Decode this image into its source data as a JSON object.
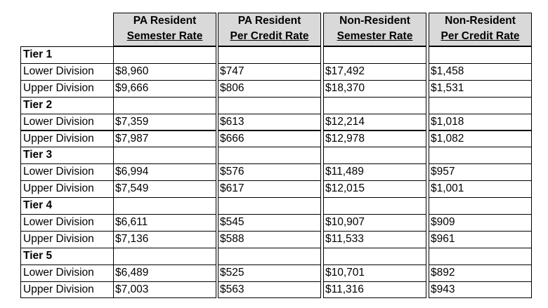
{
  "table": {
    "columns": [
      {
        "line1": "PA Resident",
        "line2": "Semester Rate"
      },
      {
        "line1": "PA Resident",
        "line2": "Per Credit Rate"
      },
      {
        "line1": "Non-Resident",
        "line2": "Semester Rate"
      },
      {
        "line1": "Non-Resident",
        "line2": "Per Credit Rate"
      }
    ],
    "rows": [
      {
        "type": "tier",
        "label": "Tier 1"
      },
      {
        "type": "data",
        "label": "Lower Division",
        "values": [
          "$8,960",
          "$747",
          "$17,492",
          "$1,458"
        ]
      },
      {
        "type": "data",
        "label": "Upper Division",
        "values": [
          "$9,666",
          "$806",
          "$18,370",
          "$1,531"
        ]
      },
      {
        "type": "tier",
        "label": "Tier 2"
      },
      {
        "type": "data",
        "label": "Lower Division",
        "values": [
          "$7,359",
          "$613",
          "$12,214",
          "$1,018"
        ]
      },
      {
        "type": "data",
        "label": "Upper Division",
        "values": [
          "$7,987",
          "$666",
          "$12,978",
          "$1,082"
        ]
      },
      {
        "type": "tier",
        "label": "Tier 3"
      },
      {
        "type": "data",
        "label": "Lower Division",
        "values": [
          "$6,994",
          "$576",
          "$11,489",
          "$957"
        ]
      },
      {
        "type": "data",
        "label": "Upper Division",
        "values": [
          "$7,549",
          "$617",
          "$12,015",
          "$1,001"
        ]
      },
      {
        "type": "tier",
        "label": "Tier 4"
      },
      {
        "type": "data",
        "label": "Lower Division",
        "values": [
          "$6,611",
          "$545",
          "$10,907",
          "$909"
        ]
      },
      {
        "type": "data",
        "label": "Upper Division",
        "values": [
          "$7,136",
          "$588",
          "$11,533",
          "$961"
        ]
      },
      {
        "type": "tier",
        "label": "Tier 5"
      },
      {
        "type": "data",
        "label": "Lower Division",
        "values": [
          "$6,489",
          "$525",
          "$10,701",
          "$892"
        ]
      },
      {
        "type": "data",
        "label": "Upper Division",
        "values": [
          "$7,003",
          "$563",
          "$11,316",
          "$943"
        ]
      }
    ]
  }
}
